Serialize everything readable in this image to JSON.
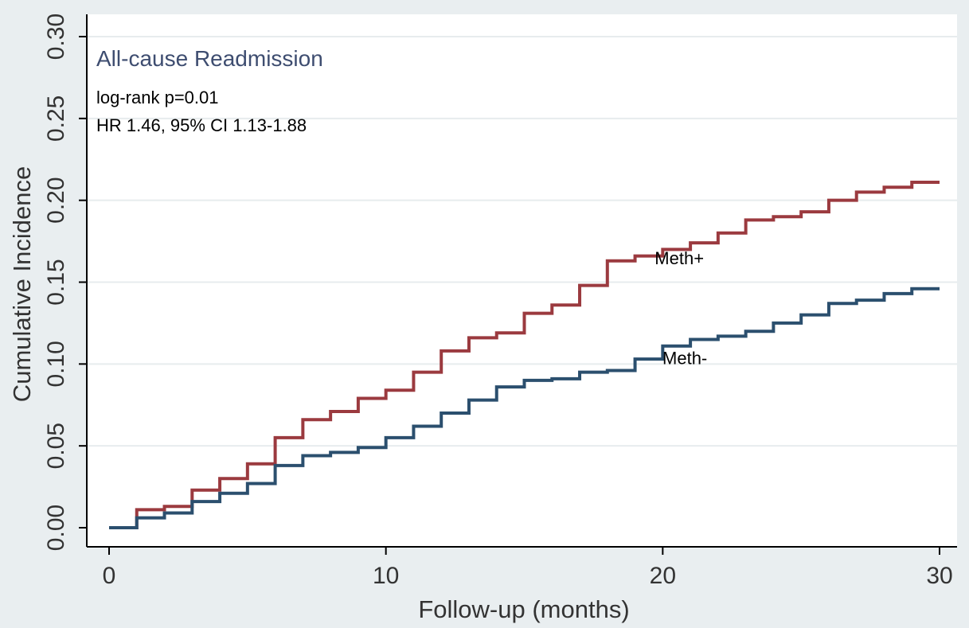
{
  "chart_data": {
    "type": "line",
    "step": true,
    "title": "All-cause Readmission",
    "annotations": [
      "log-rank p=0.01",
      "HR 1.46, 95% CI 1.13-1.88"
    ],
    "xlabel": "Follow-up (months)",
    "ylabel": "Cumulative Incidence",
    "xlim": [
      0,
      30
    ],
    "ylim": [
      0,
      0.3
    ],
    "xticks": [
      0,
      10,
      20,
      30
    ],
    "xtick_labels": [
      "0",
      "10",
      "20",
      "30"
    ],
    "yticks": [
      0,
      0.05,
      0.1,
      0.15,
      0.2,
      0.25,
      0.3
    ],
    "ytick_labels": [
      "0.00",
      "0.05",
      "0.10",
      "0.15",
      "0.20",
      "0.25",
      "0.30"
    ],
    "grid": true,
    "series": [
      {
        "name": "Meth+",
        "color": "#9b3a3f",
        "x": [
          0,
          1,
          2,
          3,
          4,
          5,
          6,
          7,
          8,
          9,
          10,
          11,
          12,
          13,
          14,
          15,
          16,
          17,
          18,
          19,
          20,
          21,
          22,
          23,
          24,
          25,
          26,
          27,
          28,
          29,
          30
        ],
        "y": [
          0.0,
          0.011,
          0.013,
          0.023,
          0.03,
          0.039,
          0.055,
          0.066,
          0.071,
          0.079,
          0.084,
          0.095,
          0.108,
          0.116,
          0.119,
          0.131,
          0.136,
          0.148,
          0.163,
          0.166,
          0.17,
          0.174,
          0.18,
          0.188,
          0.19,
          0.193,
          0.2,
          0.205,
          0.208,
          0.211,
          0.211
        ]
      },
      {
        "name": "Meth-",
        "color": "#2b4f6e",
        "x": [
          0,
          1,
          2,
          3,
          4,
          5,
          6,
          7,
          8,
          9,
          10,
          11,
          12,
          13,
          14,
          15,
          16,
          17,
          18,
          19,
          20,
          21,
          22,
          23,
          24,
          25,
          26,
          27,
          28,
          29,
          30
        ],
        "y": [
          0.0,
          0.006,
          0.009,
          0.016,
          0.021,
          0.027,
          0.038,
          0.044,
          0.046,
          0.049,
          0.055,
          0.062,
          0.07,
          0.078,
          0.086,
          0.09,
          0.091,
          0.095,
          0.096,
          0.103,
          0.111,
          0.115,
          0.117,
          0.12,
          0.125,
          0.13,
          0.137,
          0.139,
          0.143,
          0.146,
          0.146
        ]
      }
    ]
  },
  "colors": {
    "background": "#e9eef0",
    "plot_area": "#ffffff",
    "grid": "#e7ecee",
    "title": "#3e4d70"
  }
}
